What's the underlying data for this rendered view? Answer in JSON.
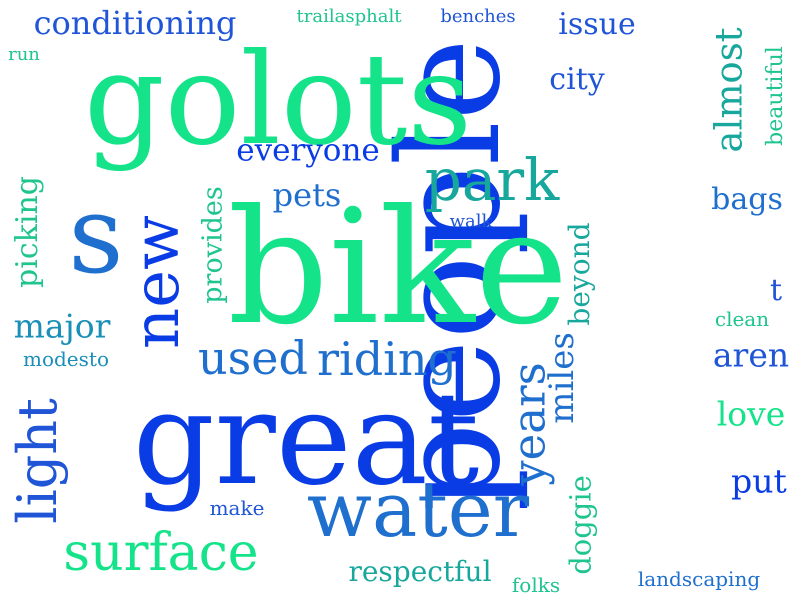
{
  "background": "#ffffff",
  "palette": {
    "deep_blue": "#0a3ce6",
    "blue": "#1f55d6",
    "steel_blue": "#1f6fcf",
    "teal_blue": "#1a8fb8",
    "teal": "#17a79c",
    "sea_green": "#1fc48f",
    "spring_green": "#14e38a"
  },
  "words": {
    "people": "people",
    "bike": "bike",
    "great": "great",
    "golots": "golots",
    "water": "water",
    "s": "s",
    "park": "park",
    "surface": "surface",
    "new": "new",
    "riding": "riding",
    "used": "used",
    "light": "light",
    "conditioning": "conditioning",
    "everyone": "everyone",
    "years": "years",
    "miles": "miles",
    "almost": "almost",
    "major": "major",
    "respectful": "respectful",
    "doggie": "doggie",
    "picking": "picking",
    "provides": "provides",
    "beyond": "beyond",
    "aren": "aren",
    "love": "love",
    "put": "put",
    "issue": "issue",
    "city": "city",
    "pets": "pets",
    "bags": "bags",
    "beautiful": "beautiful",
    "trailasphalt": "trailasphalt",
    "benches": "benches",
    "run": "run",
    "walk": "walk",
    "t": "t",
    "clean": "clean",
    "modesto": "modesto",
    "make": "make",
    "folks": "folks",
    "landscaping": "landscaping"
  }
}
